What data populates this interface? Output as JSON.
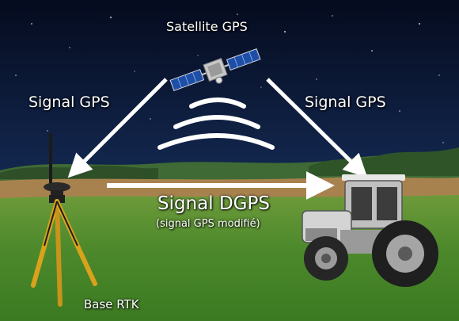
{
  "colors": {
    "sky_top": "#050b1e",
    "sky_bottom": "#2a4a78",
    "field": "#4e8a2c",
    "arrow": "#ffffff",
    "tripod": "#d9a21c",
    "tractor": "#d4d4d4"
  },
  "labels": {
    "satellite": "Satellite GPS",
    "signal_left": "Signal GPS",
    "signal_right": "Signal GPS",
    "dgps": "Signal DGPS",
    "dgps_sub": "(signal GPS modifié)",
    "base": "Base RTK"
  },
  "icons": [
    "satellite-icon",
    "signal-waves-icon",
    "gps-antenna-tripod-icon",
    "tractor-icon"
  ]
}
